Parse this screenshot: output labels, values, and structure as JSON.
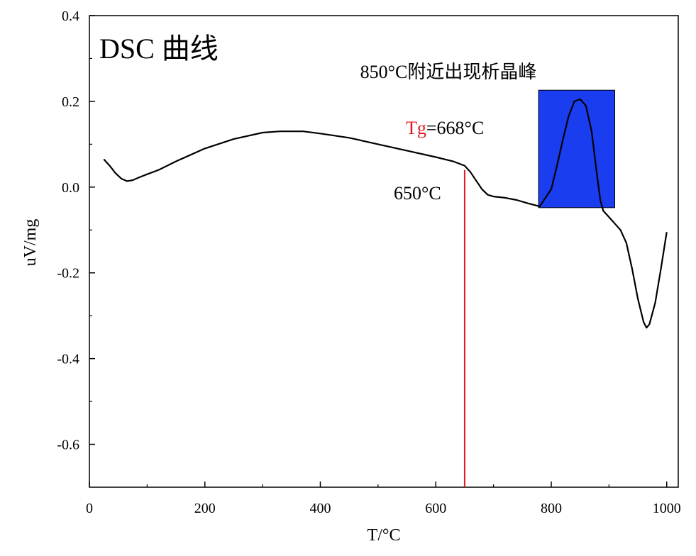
{
  "chart_data": {
    "type": "line",
    "title": "DSC 曲线",
    "xlabel": "T/°C",
    "ylabel": "uV/mg",
    "xlim": [
      0,
      1020
    ],
    "ylim": [
      -0.7,
      0.4
    ],
    "xticks": [
      0,
      200,
      400,
      600,
      800,
      1000
    ],
    "yticks": [
      -0.6,
      -0.4,
      -0.2,
      0.0,
      0.2,
      0.4
    ],
    "xtick_labels": [
      "0",
      "200",
      "400",
      "600",
      "800",
      "1000"
    ],
    "ytick_labels": [
      "-0.6",
      "-0.4",
      "-0.2",
      "0.0",
      "0.2",
      "0.4"
    ],
    "grid": false,
    "series": [
      {
        "name": "DSC",
        "color": "#000000",
        "x": [
          25,
          35,
          45,
          55,
          65,
          75,
          85,
          100,
          120,
          150,
          200,
          250,
          300,
          330,
          370,
          400,
          450,
          500,
          550,
          600,
          630,
          650,
          660,
          670,
          680,
          690,
          700,
          720,
          740,
          760,
          780,
          800,
          810,
          820,
          830,
          840,
          850,
          860,
          870,
          880,
          885,
          890,
          900,
          910,
          920,
          930,
          940,
          950,
          960,
          965,
          970,
          980,
          990,
          1000
        ],
        "y": [
          0.065,
          0.05,
          0.033,
          0.02,
          0.014,
          0.016,
          0.022,
          0.03,
          0.04,
          0.06,
          0.09,
          0.112,
          0.127,
          0.13,
          0.13,
          0.125,
          0.115,
          0.1,
          0.085,
          0.07,
          0.06,
          0.05,
          0.035,
          0.015,
          -0.005,
          -0.018,
          -0.022,
          -0.025,
          -0.03,
          -0.038,
          -0.045,
          -0.005,
          0.05,
          0.11,
          0.165,
          0.2,
          0.205,
          0.19,
          0.13,
          0.02,
          -0.03,
          -0.055,
          -0.07,
          -0.085,
          -0.1,
          -0.13,
          -0.19,
          -0.26,
          -0.315,
          -0.328,
          -0.32,
          -0.27,
          -0.19,
          -0.105
        ]
      }
    ],
    "annotations": {
      "tg_prefix": "Tg",
      "tg_value": "=668°C",
      "onset_label": "650°C",
      "peak_label": "850°C附近出现析晶峰",
      "tg_line_x": 650,
      "tg_line_y_top": 0.04,
      "tg_color": "#e0191f",
      "highlight_color": "#1a3df0",
      "highlight_x_range": [
        778,
        910
      ],
      "highlight_y_range": [
        -0.048,
        0.226
      ]
    }
  }
}
